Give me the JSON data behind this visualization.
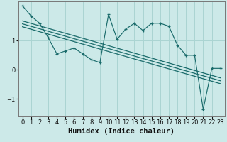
{
  "xlabel": "Humidex (Indice chaleur)",
  "background_color": "#cce9e8",
  "grid_color": "#aad4d2",
  "line_color": "#1a6b6b",
  "x_data": [
    0,
    1,
    2,
    3,
    4,
    5,
    6,
    7,
    8,
    9,
    10,
    11,
    12,
    13,
    14,
    15,
    16,
    17,
    18,
    19,
    20,
    21,
    22,
    23
  ],
  "y_main": [
    2.2,
    1.85,
    1.6,
    1.1,
    0.55,
    0.65,
    0.75,
    0.55,
    0.35,
    0.25,
    1.9,
    1.05,
    1.4,
    1.6,
    1.35,
    1.6,
    1.6,
    1.5,
    0.85,
    0.5,
    0.5,
    -1.35,
    0.05,
    0.05
  ],
  "y_upper": [
    1.68,
    1.595,
    1.51,
    1.425,
    1.34,
    1.255,
    1.17,
    1.085,
    1.0,
    0.915,
    0.83,
    0.745,
    0.66,
    0.575,
    0.49,
    0.405,
    0.32,
    0.235,
    0.15,
    0.065,
    -0.02,
    -0.105,
    -0.19,
    -0.275
  ],
  "y_middle": [
    1.58,
    1.495,
    1.41,
    1.325,
    1.24,
    1.155,
    1.07,
    0.985,
    0.9,
    0.815,
    0.73,
    0.645,
    0.56,
    0.475,
    0.39,
    0.305,
    0.22,
    0.135,
    0.05,
    -0.035,
    -0.12,
    -0.205,
    -0.29,
    -0.375
  ],
  "y_lower": [
    1.48,
    1.395,
    1.31,
    1.225,
    1.14,
    1.055,
    0.97,
    0.885,
    0.8,
    0.715,
    0.63,
    0.545,
    0.46,
    0.375,
    0.29,
    0.205,
    0.12,
    0.035,
    -0.05,
    -0.135,
    -0.22,
    -0.305,
    -0.39,
    -0.475
  ],
  "xlim": [
    -0.5,
    23.5
  ],
  "ylim": [
    -1.6,
    2.35
  ],
  "yticks": [
    -1,
    0,
    1
  ],
  "xticks": [
    0,
    1,
    2,
    3,
    4,
    5,
    6,
    7,
    8,
    9,
    10,
    11,
    12,
    13,
    14,
    15,
    16,
    17,
    18,
    19,
    20,
    21,
    22,
    23
  ],
  "xlabel_fontsize": 7.5,
  "tick_fontsize": 6.0
}
